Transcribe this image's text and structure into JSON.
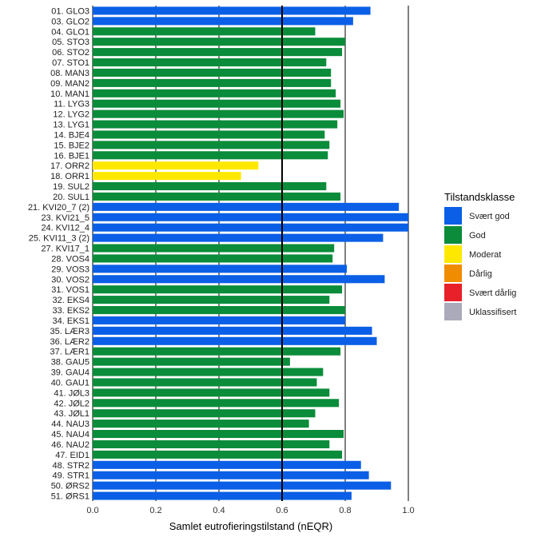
{
  "chart_data": {
    "type": "bar",
    "orientation": "horizontal",
    "xlabel": "Samlet eutrofieringstilstand (nEQR)",
    "xlim": [
      0,
      1
    ],
    "xticks": [
      "0.0",
      "0.2",
      "0.4",
      "0.6",
      "0.8",
      "1.0"
    ],
    "reference_line": 0.6,
    "grid": "vertical major",
    "legend": {
      "title": "Tilstandsklasse",
      "position": "right",
      "items": [
        {
          "key": "sg",
          "label": "Svært god",
          "color": "#0A5FE6"
        },
        {
          "key": "g",
          "label": "God",
          "color": "#0A8C3A"
        },
        {
          "key": "m",
          "label": "Moderat",
          "color": "#FFE800"
        },
        {
          "key": "d",
          "label": "Dårlig",
          "color": "#F08C00"
        },
        {
          "key": "sd",
          "label": "Svært dårlig",
          "color": "#E8202A"
        },
        {
          "key": "u",
          "label": "Uklassifisert",
          "color": "#AAAABB"
        }
      ]
    },
    "bars": [
      {
        "label": "01. GLO3",
        "value": 0.88,
        "class": "sg"
      },
      {
        "label": "03. GLO2",
        "value": 0.825,
        "class": "sg"
      },
      {
        "label": "04. GLO1",
        "value": 0.705,
        "class": "g"
      },
      {
        "label": "05. STO3",
        "value": 0.8,
        "class": "g"
      },
      {
        "label": "06. STO2",
        "value": 0.79,
        "class": "g"
      },
      {
        "label": "07. STO1",
        "value": 0.74,
        "class": "g"
      },
      {
        "label": "08. MAN3",
        "value": 0.755,
        "class": "g"
      },
      {
        "label": "09. MAN2",
        "value": 0.755,
        "class": "g"
      },
      {
        "label": "10. MAN1",
        "value": 0.77,
        "class": "g"
      },
      {
        "label": "11. LYG3",
        "value": 0.785,
        "class": "g"
      },
      {
        "label": "12. LYG2",
        "value": 0.795,
        "class": "g"
      },
      {
        "label": "13. LYG1",
        "value": 0.775,
        "class": "g"
      },
      {
        "label": "14. BJE4",
        "value": 0.735,
        "class": "g"
      },
      {
        "label": "15. BJE2",
        "value": 0.75,
        "class": "g"
      },
      {
        "label": "16. BJE1",
        "value": 0.745,
        "class": "g"
      },
      {
        "label": "17. ORR2",
        "value": 0.525,
        "class": "m"
      },
      {
        "label": "18. ORR1",
        "value": 0.47,
        "class": "m"
      },
      {
        "label": "19. SUL2",
        "value": 0.74,
        "class": "g"
      },
      {
        "label": "20. SUL1",
        "value": 0.785,
        "class": "g"
      },
      {
        "label": "21. KVI20_7 (2)",
        "value": 0.97,
        "class": "sg"
      },
      {
        "label": "23. KVI21_5",
        "value": 1.0,
        "class": "sg"
      },
      {
        "label": "24. KVI12_4",
        "value": 1.0,
        "class": "sg"
      },
      {
        "label": "25. KVI11_3 (2)",
        "value": 0.92,
        "class": "sg"
      },
      {
        "label": "27. KVI17_1",
        "value": 0.765,
        "class": "g"
      },
      {
        "label": "28. VOS4",
        "value": 0.76,
        "class": "g"
      },
      {
        "label": "29. VOS3",
        "value": 0.805,
        "class": "sg"
      },
      {
        "label": "30. VOS2",
        "value": 0.925,
        "class": "sg"
      },
      {
        "label": "31. VOS1",
        "value": 0.79,
        "class": "g"
      },
      {
        "label": "32. EKS4",
        "value": 0.75,
        "class": "g"
      },
      {
        "label": "33. EKS2",
        "value": 0.8,
        "class": "g"
      },
      {
        "label": "34. EKS1",
        "value": 0.8,
        "class": "sg"
      },
      {
        "label": "35. LÆR3",
        "value": 0.885,
        "class": "sg"
      },
      {
        "label": "36. LÆR2",
        "value": 0.9,
        "class": "sg"
      },
      {
        "label": "37. LÆR1",
        "value": 0.785,
        "class": "g"
      },
      {
        "label": "38. GAU5",
        "value": 0.625,
        "class": "g"
      },
      {
        "label": "39. GAU4",
        "value": 0.73,
        "class": "g"
      },
      {
        "label": "40. GAU1",
        "value": 0.71,
        "class": "g"
      },
      {
        "label": "41. JØL3",
        "value": 0.75,
        "class": "g"
      },
      {
        "label": "42. JØL2",
        "value": 0.78,
        "class": "g"
      },
      {
        "label": "43. JØL1",
        "value": 0.705,
        "class": "g"
      },
      {
        "label": "44. NAU3",
        "value": 0.685,
        "class": "g"
      },
      {
        "label": "45. NAU4",
        "value": 0.795,
        "class": "g"
      },
      {
        "label": "46. NAU2",
        "value": 0.75,
        "class": "g"
      },
      {
        "label": "47. EID1",
        "value": 0.79,
        "class": "g"
      },
      {
        "label": "48. STR2",
        "value": 0.85,
        "class": "sg"
      },
      {
        "label": "49. STR1",
        "value": 0.875,
        "class": "sg"
      },
      {
        "label": "50. ØRS2",
        "value": 0.945,
        "class": "sg"
      },
      {
        "label": "51. ØRS1",
        "value": 0.82,
        "class": "sg"
      }
    ]
  }
}
